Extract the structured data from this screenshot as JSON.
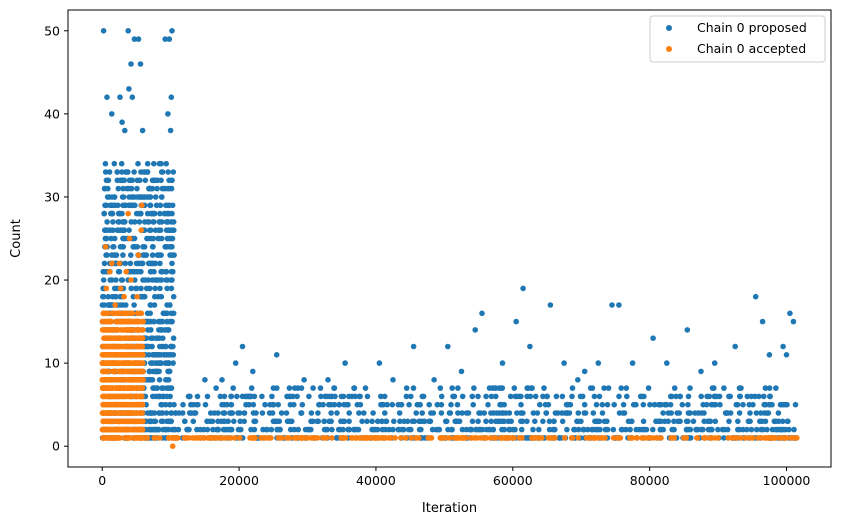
{
  "chart_data": {
    "type": "scatter",
    "title": "",
    "xlabel": "Iteration",
    "ylabel": "Count",
    "xlim": [
      -5000,
      106500
    ],
    "ylim": [
      -2.5,
      52.5
    ],
    "xticks": [
      0,
      20000,
      40000,
      60000,
      80000,
      100000
    ],
    "yticks": [
      0,
      10,
      20,
      30,
      40,
      50
    ],
    "grid": false,
    "legend_position": "top-right",
    "series": [
      {
        "name": "Chain 0 proposed",
        "color": "#1f77b4",
        "points": [
          [
            200,
            50
          ],
          [
            3800,
            50
          ],
          [
            4700,
            49
          ],
          [
            5300,
            49
          ],
          [
            5600,
            46
          ],
          [
            4200,
            46
          ],
          [
            3900,
            43
          ],
          [
            4400,
            42
          ],
          [
            700,
            42
          ],
          [
            2600,
            42
          ],
          [
            9200,
            49
          ],
          [
            9800,
            49
          ],
          [
            10200,
            50
          ],
          [
            10100,
            42
          ],
          [
            9600,
            40
          ],
          [
            1400,
            40
          ],
          [
            2900,
            39
          ],
          [
            3300,
            38
          ],
          [
            5900,
            38
          ],
          [
            10000,
            38
          ],
          [
            8800,
            31
          ],
          [
            9100,
            28
          ],
          [
            8700,
            25
          ],
          [
            8600,
            23
          ],
          [
            10500,
            23
          ],
          [
            8400,
            20
          ],
          [
            8200,
            18
          ],
          [
            15000,
            8
          ],
          [
            17500,
            8
          ],
          [
            19500,
            10
          ],
          [
            20500,
            12
          ],
          [
            22000,
            9
          ],
          [
            25500,
            11
          ],
          [
            27000,
            6
          ],
          [
            29500,
            8
          ],
          [
            33000,
            8
          ],
          [
            35500,
            10
          ],
          [
            40500,
            10
          ],
          [
            42500,
            8
          ],
          [
            45500,
            12
          ],
          [
            48500,
            8
          ],
          [
            50500,
            12
          ],
          [
            52500,
            9
          ],
          [
            54500,
            14
          ],
          [
            55500,
            16
          ],
          [
            58500,
            10
          ],
          [
            60500,
            15
          ],
          [
            61500,
            19
          ],
          [
            62500,
            12
          ],
          [
            65500,
            17
          ],
          [
            67500,
            10
          ],
          [
            69500,
            8
          ],
          [
            70500,
            9
          ],
          [
            72500,
            10
          ],
          [
            74500,
            17
          ],
          [
            75500,
            17
          ],
          [
            77500,
            10
          ],
          [
            80500,
            13
          ],
          [
            82500,
            10
          ],
          [
            85500,
            14
          ],
          [
            87500,
            9
          ],
          [
            89500,
            10
          ],
          [
            92500,
            12
          ],
          [
            95500,
            18
          ],
          [
            96500,
            15
          ],
          [
            99500,
            12
          ],
          [
            100500,
            16
          ],
          [
            101000,
            15
          ],
          [
            100000,
            11
          ],
          [
            97500,
            11
          ]
        ],
        "bands": [
          {
            "x": [
              0,
              10500
            ],
            "y": [
              1,
              34
            ],
            "note": "dense region"
          },
          {
            "x": [
              10500,
              101500
            ],
            "y": [
              1,
              7
            ],
            "note": "dense region"
          }
        ]
      },
      {
        "name": "Chain 0 accepted",
        "color": "#ff7f0e",
        "points": [
          [
            3800,
            28
          ],
          [
            5800,
            29
          ],
          [
            5700,
            26
          ],
          [
            4000,
            25
          ],
          [
            500,
            24
          ],
          [
            5300,
            23
          ],
          [
            1400,
            22
          ],
          [
            2500,
            22
          ],
          [
            1100,
            21
          ],
          [
            3500,
            21
          ],
          [
            4200,
            20
          ],
          [
            2700,
            19
          ],
          [
            600,
            19
          ],
          [
            5100,
            18
          ],
          [
            3200,
            18
          ],
          [
            1900,
            17
          ],
          [
            10300,
            0
          ],
          [
            10500,
            1
          ],
          [
            30000,
            1
          ],
          [
            60000,
            1
          ],
          [
            90000,
            1
          ],
          [
            101500,
            1
          ]
        ],
        "bands": [
          {
            "x": [
              0,
              6000
            ],
            "y": [
              1,
              16
            ],
            "note": "dense region"
          },
          {
            "x": [
              6000,
              101500
            ],
            "y": [
              1,
              1
            ],
            "note": "flat line"
          }
        ]
      }
    ]
  }
}
